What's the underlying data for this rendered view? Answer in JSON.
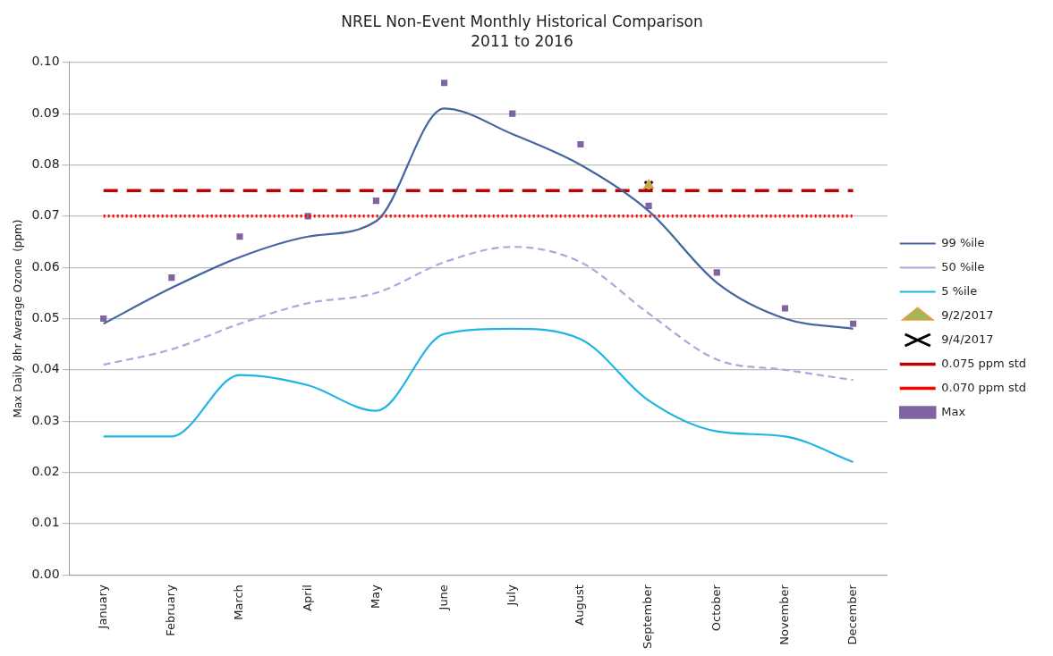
{
  "chart_data": {
    "type": "line",
    "title": "NREL Non-Event Monthly Historical Comparison",
    "subtitle": "2011 to 2016",
    "ylabel": "Max Daily 8hr Average Ozone  (ppm)",
    "categories": [
      "January",
      "February",
      "March",
      "April",
      "May",
      "June",
      "July",
      "August",
      "September",
      "October",
      "November",
      "December"
    ],
    "series": [
      {
        "name": "99 %ile",
        "type": "line",
        "color": "#4565a0",
        "marker": "none",
        "line_style": "solid",
        "values": [
          0.049,
          0.056,
          0.062,
          0.066,
          0.069,
          0.091,
          0.086,
          0.08,
          0.071,
          0.057,
          0.05,
          0.048
        ]
      },
      {
        "name": "50 %ile",
        "type": "line",
        "color": "#a9a9dc",
        "marker": "none",
        "line_style": "dashed",
        "values": [
          0.041,
          0.044,
          0.049,
          0.053,
          0.055,
          0.061,
          0.064,
          0.061,
          0.051,
          0.042,
          0.04,
          0.038
        ]
      },
      {
        "name": "5 %ile",
        "type": "line",
        "color": "#1eb4e6",
        "marker": "none",
        "line_style": "solid",
        "values": [
          0.027,
          0.027,
          0.039,
          0.037,
          0.032,
          0.047,
          0.048,
          0.046,
          0.034,
          0.028,
          0.027,
          0.022
        ]
      },
      {
        "name": "9/2/2017",
        "type": "scatter",
        "color": "#f79646",
        "marker": "triangle",
        "values": [
          null,
          null,
          null,
          null,
          null,
          null,
          null,
          null,
          0.076,
          null,
          null,
          null
        ]
      },
      {
        "name": "9/4/2017",
        "type": "scatter",
        "color": "#000000",
        "marker": "cross",
        "values": [
          null,
          null,
          null,
          null,
          null,
          null,
          null,
          null,
          0.076,
          null,
          null,
          null
        ]
      },
      {
        "name": "Max",
        "type": "scatter",
        "color": "#8064a2",
        "marker": "square",
        "values": [
          0.05,
          0.058,
          0.066,
          0.07,
          0.073,
          0.096,
          0.09,
          0.084,
          0.072,
          0.059,
          0.052,
          0.049
        ]
      }
    ],
    "ref_lines": [
      {
        "axis": "y",
        "value": 0.075,
        "label": "0.075 ppm std",
        "color": "#c00000",
        "line_style": "dashed"
      },
      {
        "axis": "y",
        "value": 0.07,
        "label": "0.070 ppm std",
        "color": "#ff0000",
        "line_style": "dotted"
      }
    ],
    "ylim": [
      0,
      0.1
    ],
    "yticks": [
      {
        "value": 0,
        "label": "0.00"
      },
      {
        "value": 0.01,
        "label": "0.01"
      },
      {
        "value": 0.02,
        "label": "0.02"
      },
      {
        "value": 0.03,
        "label": "0.03"
      },
      {
        "value": 0.04,
        "label": "0.04"
      },
      {
        "value": 0.05,
        "label": "0.05"
      },
      {
        "value": 0.06,
        "label": "0.06"
      },
      {
        "value": 0.07,
        "label": "0.07"
      },
      {
        "value": 0.08,
        "label": "0.08"
      },
      {
        "value": 0.09,
        "label": "0.09"
      },
      {
        "value": 0.1,
        "label": "0.10"
      }
    ],
    "grid": "y",
    "legend": "right"
  }
}
